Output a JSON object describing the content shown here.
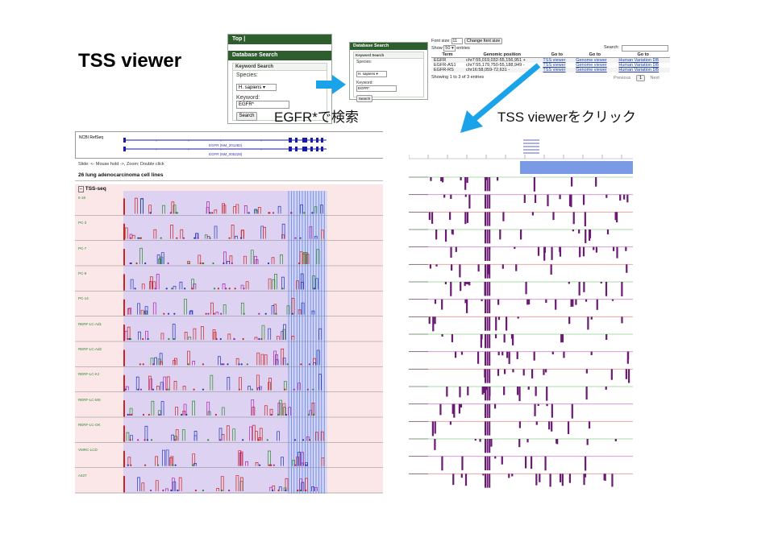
{
  "slide_title": "TSS viewer",
  "captions": {
    "search": "EGFR*で検索",
    "click": "TSS viewerをクリック"
  },
  "search_panel_1": {
    "top_tab": "Top",
    "header": "Database Search",
    "section": "Keyword Search",
    "species_label": "Species:",
    "species_value": "H. sapiens",
    "keyword_label": "Keyword:",
    "keyword_value": "EGFR*",
    "search_button": "Search"
  },
  "search_panel_2": {
    "header": "Database Search",
    "section": "Keyword Search",
    "species_label": "Species:",
    "species_value": "H. sapiens",
    "keyword_label": "Keyword:",
    "keyword_value": "EGFR*",
    "search_button": "Search"
  },
  "results": {
    "font_size_label": "Font size:",
    "font_size_value": "11",
    "change_font_button": "Change font size",
    "show_label": "Show",
    "show_value": "50",
    "entries_label": "entries",
    "search_label": "Search:",
    "columns": [
      "Term",
      "Genomic position",
      "Go to",
      "Go to",
      "Go to"
    ],
    "rows": [
      {
        "term": "EGFR",
        "position": "chr7:55,019,032-55,156,951 +",
        "tss": "TSS viewer",
        "genome": "Genome viewer",
        "hvar": "Human Variation DB"
      },
      {
        "term": "EGFR-AS1",
        "position": "chr7:55,179,750-55,188,949 -",
        "tss": "TSS viewer",
        "genome": "Genome viewer",
        "hvar": "Human Variation DB"
      },
      {
        "term": "EGFR-RS",
        "position": "chr16:58,059-72,631 -",
        "tss": "TSS viewer",
        "genome": "Genome viewer",
        "hvar": "Human Variation DB"
      }
    ],
    "showing": "Showing 1 to 3 of 3 entries",
    "previous": "Previous",
    "page": "1",
    "next": "Next"
  },
  "tss_left": {
    "track_label": "NCBI RefSeq",
    "transcript_1": "EGFR (NM_201282)",
    "transcript_2": "EGFR (NM_005228)",
    "hint": "Slide: <- Mouse hold ->, Zoom: Double click",
    "section_title": "26 lung adenocarcinoma cell lines",
    "tss_seq_label": "TSS-seq",
    "lanes": [
      "II-18",
      "PC-3",
      "PC-7",
      "PC-9",
      "PC-14",
      "RERF-LC-Ad1",
      "RERF-LC-Ad2",
      "RERF-LC-KJ",
      "RERF-LC-MS",
      "RERF-LC-OK",
      "VMRC-LCD",
      "A427"
    ]
  },
  "colors": {
    "panel_green": "#2e5e2e",
    "arrow_blue": "#1aa3e8",
    "purple_bg": "#ddd2f2",
    "pink_bg": "#fbe7e7",
    "bar_purple": "#6a1a73",
    "blue_highlight": "#4a6ee0"
  }
}
